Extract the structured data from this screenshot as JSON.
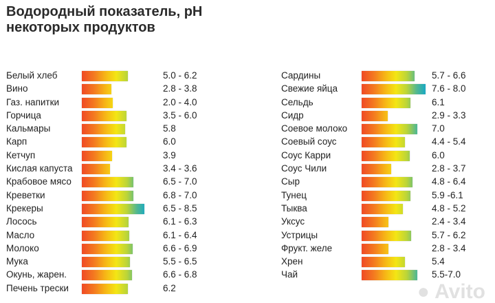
{
  "title_line1": "Водородный показатель, pH",
  "title_line2": "некоторых продуктов",
  "watermark": "Avito",
  "chart_data": {
    "type": "bar",
    "title": "Водородный показатель, pH некоторых продуктов",
    "columns": [
      {
        "items": [
          {
            "name": "Белый хлеб",
            "range": "5.0 - 6.2",
            "min": 5.0,
            "max": 6.2
          },
          {
            "name": "Вино",
            "range": "2.8 - 3.8",
            "min": 2.8,
            "max": 3.8
          },
          {
            "name": "Газ. напитки",
            "range": "2.0 - 4.0",
            "min": 2.0,
            "max": 4.0
          },
          {
            "name": "Горчица",
            "range": "3.5 - 6.0",
            "min": 3.5,
            "max": 6.0
          },
          {
            "name": "Кальмары",
            "range": "5.8",
            "min": 5.8,
            "max": 5.8
          },
          {
            "name": "Карп",
            "range": "6.0",
            "min": 6.0,
            "max": 6.0
          },
          {
            "name": "Кетчуп",
            "range": "3.9",
            "min": 3.9,
            "max": 3.9
          },
          {
            "name": "Кислая капуста",
            "range": "3.4 - 3.6",
            "min": 3.4,
            "max": 3.6
          },
          {
            "name": "Крабовое мясо",
            "range": "6.5 - 7.0",
            "min": 6.5,
            "max": 7.0
          },
          {
            "name": "Креветки",
            "range": "6.8 - 7.0",
            "min": 6.8,
            "max": 7.0
          },
          {
            "name": "Крекеры",
            "range": "6.5 - 8.5",
            "min": 6.5,
            "max": 8.5
          },
          {
            "name": "Лосось",
            "range": "6.1 - 6.3",
            "min": 6.1,
            "max": 6.3
          },
          {
            "name": "Масло",
            "range": "6.1 - 6.4",
            "min": 6.1,
            "max": 6.4
          },
          {
            "name": "Молоко",
            "range": "6.6 - 6.9",
            "min": 6.6,
            "max": 6.9
          },
          {
            "name": "Мука",
            "range": "5.5 - 6.5",
            "min": 5.5,
            "max": 6.5
          },
          {
            "name": "Окунь, жарен.",
            "range": "6.6 - 6.8",
            "min": 6.6,
            "max": 6.8
          },
          {
            "name": "Печень трески",
            "range": "6.2",
            "min": 6.2,
            "max": 6.2
          }
        ]
      },
      {
        "items": [
          {
            "name": "Сардины",
            "range": "5.7 - 6.6",
            "min": 5.7,
            "max": 6.6
          },
          {
            "name": "Свежие яйца",
            "range": "7.6 - 8.0",
            "min": 7.6,
            "max": 8.0
          },
          {
            "name": "Сельдь",
            "range": "6.1",
            "min": 6.1,
            "max": 6.1
          },
          {
            "name": "Сидр",
            "range": "2.9 - 3.3",
            "min": 2.9,
            "max": 3.3
          },
          {
            "name": "Соевое молоко",
            "range": "7.0",
            "min": 7.0,
            "max": 7.0
          },
          {
            "name": "Соевый соус",
            "range": "4.4 - 5.4",
            "min": 4.4,
            "max": 5.4
          },
          {
            "name": "Соус Карри",
            "range": "6.0",
            "min": 6.0,
            "max": 6.0
          },
          {
            "name": "Соус Чили",
            "range": "2.8 - 3.7",
            "min": 2.8,
            "max": 3.7
          },
          {
            "name": "Сыр",
            "range": "4.8 - 6.4",
            "min": 4.8,
            "max": 6.4
          },
          {
            "name": "Тунец",
            "range": "5.9 -6.1",
            "min": 5.9,
            "max": 6.1
          },
          {
            "name": "Тыква",
            "range": "4.8 - 5.2",
            "min": 4.8,
            "max": 5.2
          },
          {
            "name": "Уксус",
            "range": "2.4 - 3.4",
            "min": 2.4,
            "max": 3.4
          },
          {
            "name": "Устрицы",
            "range": "5.7 - 6.2",
            "min": 5.7,
            "max": 6.2
          },
          {
            "name": "Фрукт. желе",
            "range": "2.8 - 3.4",
            "min": 2.8,
            "max": 3.4
          },
          {
            "name": "Хрен",
            "range": "5.4",
            "min": 5.4,
            "max": 5.4
          },
          {
            "name": "Чай",
            "range": "5.5-7.0",
            "min": 5.5,
            "max": 7.0
          }
        ]
      }
    ],
    "gradient_colors": [
      "#ef4a25",
      "#f4e614",
      "#52b890",
      "#1a9ee8"
    ]
  }
}
